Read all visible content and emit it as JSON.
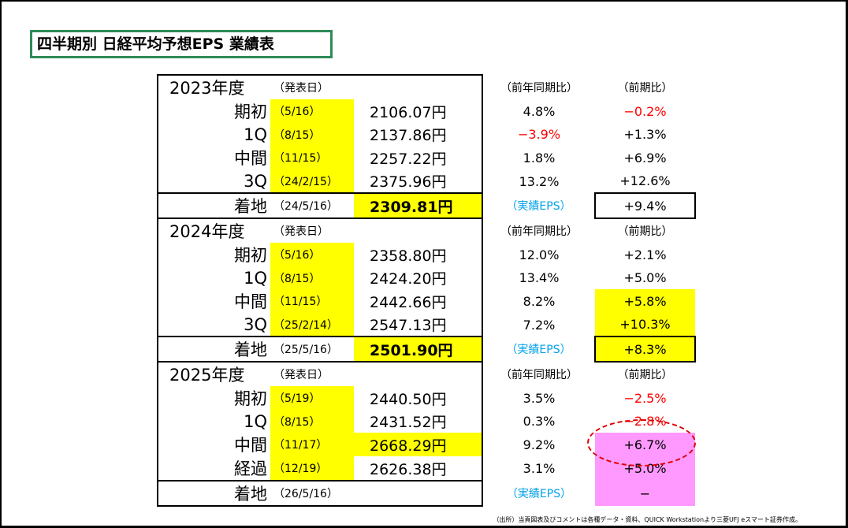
{
  "title": "四半期別 日経平均予想EPS 業績表",
  "col_headers": {
    "date": "（発表日）",
    "yoy": "（前年同期比）",
    "qoq": "（前期比）",
    "actual": "（実績EPS）"
  },
  "sections": [
    {
      "year": "2023年度",
      "rows": [
        {
          "label": "期初",
          "date": "（5/16）",
          "value": "2106.07円",
          "yoy": "4.8%",
          "qoq": "−0.2%"
        },
        {
          "label": "1Q",
          "date": "（8/15）",
          "value": "2137.86円",
          "yoy": "−3.9%",
          "qoq": "+1.3%"
        },
        {
          "label": "中間",
          "date": "（11/15）",
          "value": "2257.22円",
          "yoy": "1.8%",
          "qoq": "+6.9%"
        },
        {
          "label": "3Q",
          "date": "（24/2/15）",
          "value": "2375.96円",
          "yoy": "13.2%",
          "qoq": "+12.6%"
        }
      ],
      "final": {
        "label": "着地",
        "date": "（24/5/16）",
        "value": "2309.81円",
        "qoq": "+9.4%"
      }
    },
    {
      "year": "2024年度",
      "rows": [
        {
          "label": "期初",
          "date": "（5/16）",
          "value": "2358.80円",
          "yoy": "12.0%",
          "qoq": "+2.1%"
        },
        {
          "label": "1Q",
          "date": "（8/15）",
          "value": "2424.20円",
          "yoy": "13.4%",
          "qoq": "+5.0%"
        },
        {
          "label": "中間",
          "date": "（11/15）",
          "value": "2442.66円",
          "yoy": "8.2%",
          "qoq": "+5.8%"
        },
        {
          "label": "3Q",
          "date": "（25/2/14）",
          "value": "2547.13円",
          "yoy": "7.2%",
          "qoq": "+10.3%"
        }
      ],
      "final": {
        "label": "着地",
        "date": "（25/5/16）",
        "value": "2501.90円",
        "qoq": "+8.3%"
      }
    },
    {
      "year": "2025年度",
      "rows": [
        {
          "label": "期初",
          "date": "（5/19）",
          "value": "2440.50円",
          "yoy": "3.5%",
          "qoq": "−2.5%"
        },
        {
          "label": "1Q",
          "date": "（8/15）",
          "value": "2431.52円",
          "yoy": "0.3%",
          "qoq": "−2.8%"
        },
        {
          "label": "中間",
          "date": "（11/17）",
          "value": "2668.29円",
          "yoy": "9.2%",
          "qoq": "+6.7%"
        },
        {
          "label": "経過",
          "date": "（12/19）",
          "value": "2626.38円",
          "yoy": "3.1%",
          "qoq": "+5.0%"
        }
      ],
      "final": {
        "label": "着地",
        "date": "（26/5/16）",
        "value": "",
        "qoq": "−"
      }
    }
  ],
  "colors": {
    "highlight": "#ffff00",
    "pink": "#ff99ff",
    "negative": "#ff0000",
    "actual_label": "#00a0e9",
    "title_border": "#2e8b57",
    "ellipse": "#e00000"
  },
  "footnote": "（出所）当頁図表及びコメントは各種データ・資料、QUICK Workstationより三菱UFJ eスマート証券作成。"
}
